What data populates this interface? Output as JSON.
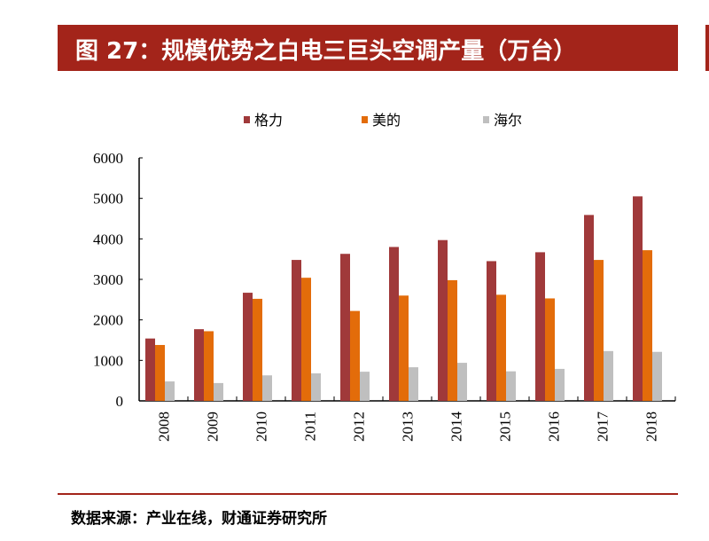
{
  "header": {
    "title": "图 27：规模优势之白电三巨头空调产量（万台）"
  },
  "footer": {
    "source": "数据来源：产业在线，财通证券研究所"
  },
  "chart_data": {
    "type": "bar",
    "title": "图 27：规模优势之白电三巨头空调产量（万台）",
    "categories": [
      "2008",
      "2009",
      "2010",
      "2011",
      "2012",
      "2013",
      "2014",
      "2015",
      "2016",
      "2017",
      "2018"
    ],
    "series": [
      {
        "name": "格力",
        "color": "#A0393A",
        "values": [
          1540,
          1770,
          2670,
          3480,
          3630,
          3800,
          3970,
          3450,
          3670,
          4590,
          5050
        ]
      },
      {
        "name": "美的",
        "color": "#E36C0A",
        "values": [
          1380,
          1720,
          2520,
          3040,
          2220,
          2600,
          2980,
          2620,
          2530,
          3480,
          3720
        ]
      },
      {
        "name": "海尔",
        "color": "#BFBFBF",
        "values": [
          480,
          440,
          630,
          680,
          720,
          830,
          940,
          730,
          790,
          1230,
          1210
        ]
      }
    ],
    "ylim": [
      0,
      6000
    ],
    "yticks": [
      "0",
      "1000",
      "2000",
      "3000",
      "4000",
      "5000",
      "6000"
    ],
    "legend": "top",
    "grid": false
  }
}
